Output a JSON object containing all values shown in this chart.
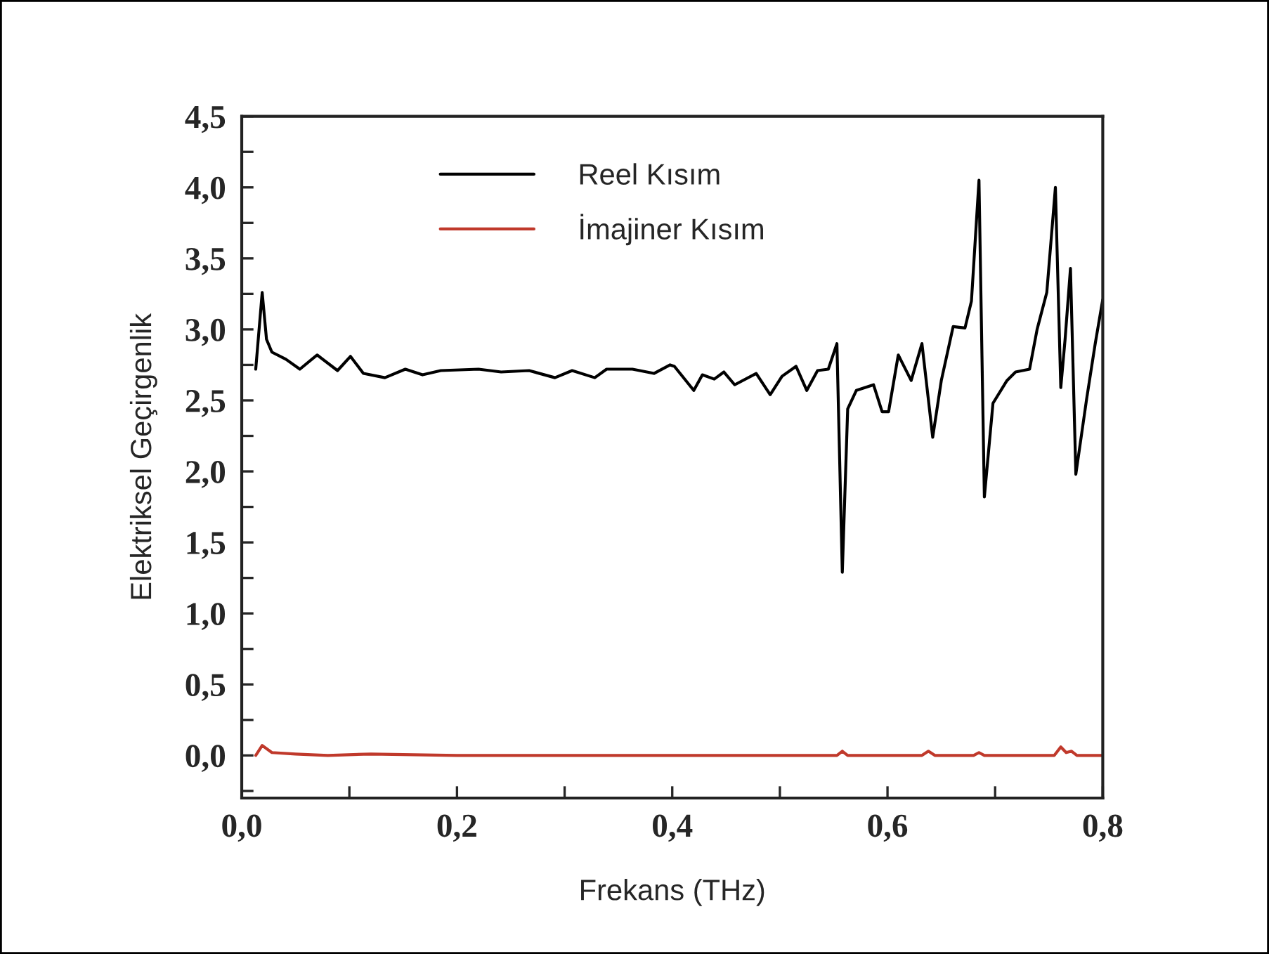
{
  "chart_data": {
    "type": "line",
    "xlabel": "Frekans (THz)",
    "ylabel": "Elektriksel Geçirgenlik",
    "xlim": [
      0,
      0.8
    ],
    "ylim": [
      -0.3,
      4.5
    ],
    "xticks": [
      {
        "value": 0,
        "label": "0,0"
      },
      {
        "value": 0.1,
        "label": null
      },
      {
        "value": 0.2,
        "label": "0,2"
      },
      {
        "value": 0.3,
        "label": null
      },
      {
        "value": 0.4,
        "label": "0,4"
      },
      {
        "value": 0.5,
        "label": null
      },
      {
        "value": 0.6,
        "label": "0,6"
      },
      {
        "value": 0.7,
        "label": null
      },
      {
        "value": 0.8,
        "label": "0,8"
      }
    ],
    "yticks": [
      {
        "value": -0.25,
        "label": null
      },
      {
        "value": 0,
        "label": "0,0"
      },
      {
        "value": 0.25,
        "label": null
      },
      {
        "value": 0.5,
        "label": "0,5"
      },
      {
        "value": 0.75,
        "label": null
      },
      {
        "value": 1.0,
        "label": "1,0"
      },
      {
        "value": 1.25,
        "label": null
      },
      {
        "value": 1.5,
        "label": "1,5"
      },
      {
        "value": 1.75,
        "label": null
      },
      {
        "value": 2.0,
        "label": "2,0"
      },
      {
        "value": 2.25,
        "label": null
      },
      {
        "value": 2.5,
        "label": "2,5"
      },
      {
        "value": 2.75,
        "label": null
      },
      {
        "value": 3.0,
        "label": "3,0"
      },
      {
        "value": 3.25,
        "label": null
      },
      {
        "value": 3.5,
        "label": "3,5"
      },
      {
        "value": 3.75,
        "label": null
      },
      {
        "value": 4.0,
        "label": "4,0"
      },
      {
        "value": 4.25,
        "label": null
      },
      {
        "value": 4.5,
        "label": "4,5"
      }
    ],
    "grid": false,
    "legend": "top",
    "marker": "none",
    "line_style": "solid",
    "series": [
      {
        "name": "Reel Kısım",
        "color": "#000000",
        "x": [
          0.013,
          0.019,
          0.023,
          0.028,
          0.041,
          0.054,
          0.07,
          0.089,
          0.101,
          0.113,
          0.133,
          0.152,
          0.168,
          0.185,
          0.22,
          0.241,
          0.267,
          0.291,
          0.307,
          0.328,
          0.339,
          0.363,
          0.383,
          0.398,
          0.402,
          0.42,
          0.428,
          0.439,
          0.448,
          0.458,
          0.478,
          0.491,
          0.502,
          0.515,
          0.525,
          0.535,
          0.545,
          0.553,
          0.558,
          0.563,
          0.571,
          0.587,
          0.595,
          0.601,
          0.61,
          0.622,
          0.632,
          0.642,
          0.65,
          0.661,
          0.672,
          0.678,
          0.685,
          0.69,
          0.698,
          0.711,
          0.719,
          0.732,
          0.739,
          0.748,
          0.756,
          0.761,
          0.765,
          0.77,
          0.775,
          0.785,
          0.793,
          0.8
        ],
        "values": [
          2.72,
          3.26,
          2.93,
          2.84,
          2.79,
          2.72,
          2.82,
          2.71,
          2.81,
          2.69,
          2.66,
          2.72,
          2.68,
          2.71,
          2.72,
          2.7,
          2.71,
          2.66,
          2.71,
          2.66,
          2.72,
          2.72,
          2.69,
          2.75,
          2.74,
          2.57,
          2.68,
          2.65,
          2.7,
          2.61,
          2.69,
          2.54,
          2.67,
          2.74,
          2.57,
          2.71,
          2.72,
          2.9,
          1.29,
          2.44,
          2.57,
          2.61,
          2.42,
          2.42,
          2.82,
          2.64,
          2.9,
          2.24,
          2.64,
          3.02,
          3.01,
          3.2,
          4.05,
          1.82,
          2.48,
          2.64,
          2.7,
          2.72,
          3.0,
          3.26,
          4.0,
          2.59,
          2.93,
          3.43,
          1.98,
          2.51,
          2.9,
          3.21
        ]
      },
      {
        "name": "İmajiner Kısım",
        "color": "#c0392b",
        "x": [
          0.013,
          0.019,
          0.028,
          0.05,
          0.08,
          0.12,
          0.2,
          0.3,
          0.4,
          0.5,
          0.553,
          0.558,
          0.563,
          0.632,
          0.638,
          0.644,
          0.68,
          0.685,
          0.69,
          0.755,
          0.761,
          0.766,
          0.771,
          0.776,
          0.8
        ],
        "values": [
          0,
          0.07,
          0.02,
          0.01,
          0,
          0.01,
          0,
          0,
          0,
          0,
          0,
          0.03,
          0,
          0,
          0.03,
          0,
          0,
          0.02,
          0,
          0,
          0.06,
          0.02,
          0.03,
          0,
          0
        ]
      }
    ]
  }
}
